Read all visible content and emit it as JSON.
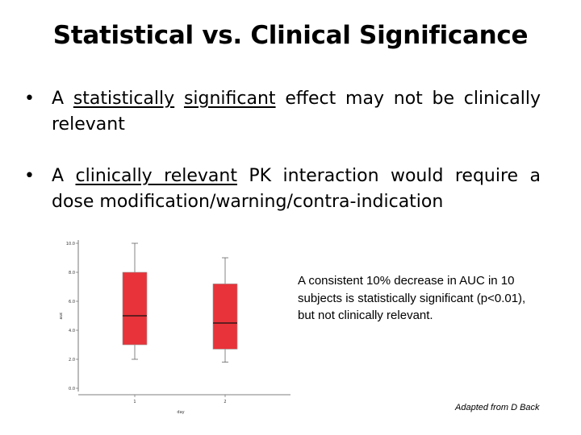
{
  "slide": {
    "title": "Statistical vs. Clinical Significance",
    "bullets": [
      {
        "before": "A ",
        "u1": "statistically",
        "mid": " ",
        "u2": "significant",
        "after": " effect may not be clinically relevant"
      },
      {
        "before": "A ",
        "u1": "clinically relevant",
        "after": " PK interaction would require a dose modification/warning/contra-indication"
      }
    ],
    "bullet_glyph": "•",
    "note": "A consistent 10% decrease in AUC in 10 subjects is statistically significant (p<0.01), but not clinically relevant.",
    "credit": "Adapted from D Back"
  },
  "chart_data": {
    "type": "boxplot",
    "xlabel": "day",
    "ylabel": "auc",
    "categories": [
      "1",
      "2"
    ],
    "ylim": [
      0,
      10
    ],
    "yticks": [
      "0.0",
      "2.0",
      "4.0",
      "6.0",
      "8.0",
      "10.0"
    ],
    "box_color": "#e8333a",
    "boxes": [
      {
        "category": "1",
        "min": 2.0,
        "q1": 3.0,
        "median": 5.0,
        "q3": 8.0,
        "max": 10.0
      },
      {
        "category": "2",
        "min": 1.8,
        "q1": 2.7,
        "median": 4.5,
        "q3": 7.2,
        "max": 9.0
      }
    ]
  }
}
